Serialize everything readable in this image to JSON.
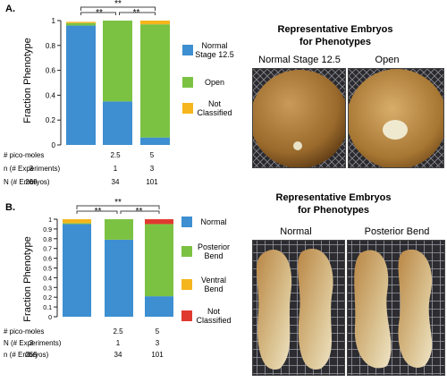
{
  "panels": [
    {
      "letter": "A.",
      "ylabel": "Fraction Phenotype",
      "yticks": [
        "0",
        "0.2",
        "0.4",
        "0.6",
        "0.8",
        "1"
      ],
      "sig": {
        "top": "**",
        "left": "**",
        "right": "**"
      },
      "table": {
        "rows": [
          {
            "label": "# pico-moles",
            "values": [
              "-",
              "2.5",
              "5"
            ]
          },
          {
            "label": "n (# Experiments)",
            "values": [
              "3",
              "1",
              "3"
            ]
          },
          {
            "label": "N (# Embryos)",
            "values": [
              "269",
              "34",
              "101"
            ]
          }
        ]
      },
      "embryos_title_line1": "Representative Embryos",
      "embryos_title_line2": "for Phenotypes",
      "photo_labels": [
        "Normal Stage 12.5",
        "Open"
      ]
    },
    {
      "letter": "B.",
      "ylabel": "Fraction Phenotype",
      "yticks": [
        "0",
        "0.1",
        "0.2",
        "0.3",
        "0.4",
        "0.5",
        "0.6",
        "0.7",
        "0.8",
        "0.9",
        "1"
      ],
      "sig": {
        "top": "**",
        "left": "**",
        "right": "**"
      },
      "table": {
        "rows": [
          {
            "label": "# pico-moles",
            "values": [
              "-",
              "2.5",
              "5"
            ]
          },
          {
            "label": "N (# Experiments)",
            "values": [
              "3",
              "1",
              "3"
            ]
          },
          {
            "label": "n (# Embryos)",
            "values": [
              "269",
              "34",
              "101"
            ]
          }
        ]
      },
      "embryos_title_line1": "Representative Embryos",
      "embryos_title_line2": "for Phenotypes",
      "photo_labels": [
        "Normal",
        "Posterior Bend"
      ]
    }
  ],
  "chart_data": [
    {
      "type": "bar",
      "stacked": true,
      "categories": [
        "-",
        "2.5",
        "5"
      ],
      "ylabel": "Fraction Phenotype",
      "ylim": [
        0,
        1
      ],
      "series": [
        {
          "name": "Normal Stage 12.5",
          "color": "#3d8fd1",
          "values": [
            0.96,
            0.35,
            0.06
          ]
        },
        {
          "name": "Open",
          "color": "#7cc242",
          "values": [
            0.02,
            0.65,
            0.91
          ]
        },
        {
          "name": "Not Classified",
          "color": "#f5b51c",
          "values": [
            0.01,
            0.0,
            0.03
          ]
        }
      ],
      "legend_labels": [
        [
          "Normal",
          "Stage 12.5"
        ],
        [
          "Open"
        ],
        [
          "Not",
          "Classified"
        ]
      ]
    },
    {
      "type": "bar",
      "stacked": true,
      "categories": [
        "-",
        "2.5",
        "5"
      ],
      "ylabel": "Fraction Phenotype",
      "ylim": [
        0,
        1
      ],
      "series": [
        {
          "name": "Normal",
          "color": "#3d8fd1",
          "values": [
            0.95,
            0.79,
            0.21
          ]
        },
        {
          "name": "Posterior Bend",
          "color": "#7cc242",
          "values": [
            0.01,
            0.21,
            0.74
          ]
        },
        {
          "name": "Ventral Bend",
          "color": "#f5b51c",
          "values": [
            0.04,
            0.0,
            0.0
          ]
        },
        {
          "name": "Not Classified",
          "color": "#e03a2f",
          "values": [
            0.0,
            0.0,
            0.05
          ]
        }
      ],
      "legend_labels": [
        [
          "Normal"
        ],
        [
          "Posterior",
          "Bend"
        ],
        [
          "Ventral",
          "Bend"
        ],
        [
          "Not",
          "Classified"
        ]
      ]
    }
  ]
}
